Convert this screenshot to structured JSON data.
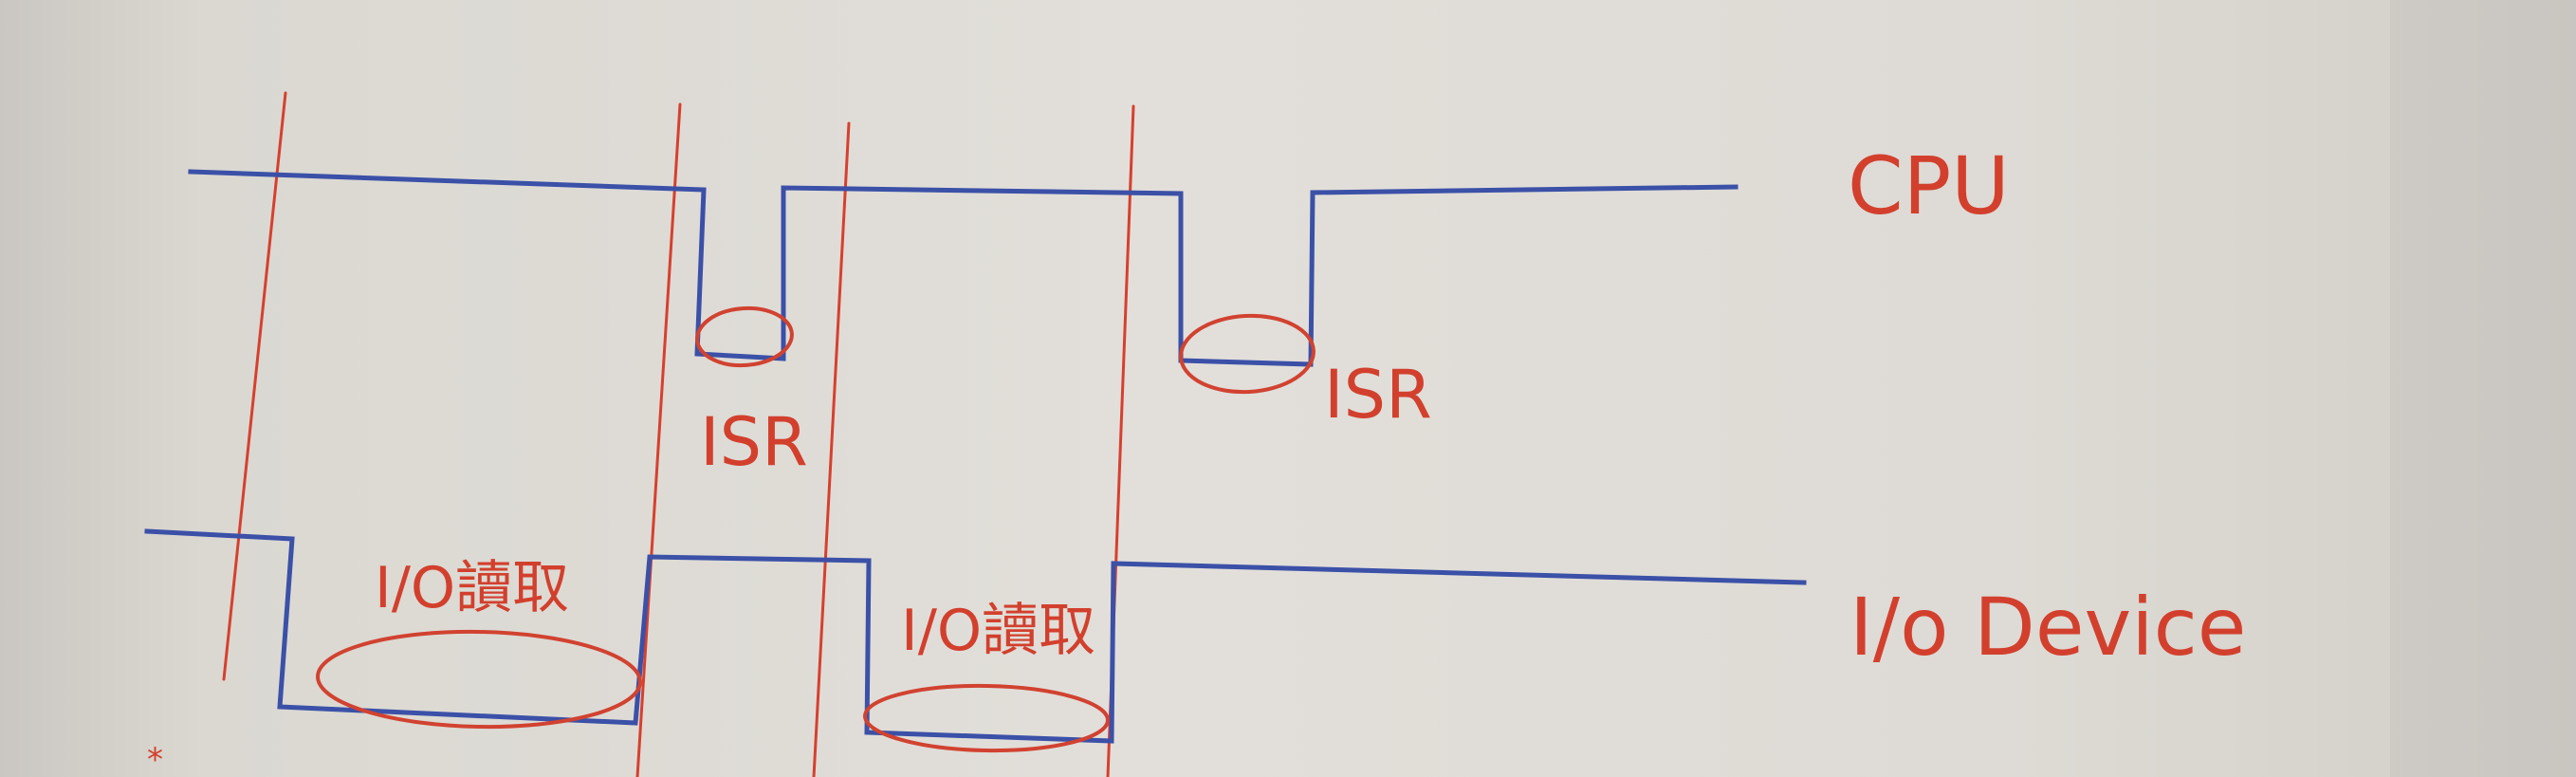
{
  "labels": {
    "cpu": "CPU",
    "isr_1": "ISR",
    "isr_2": "ISR",
    "io_read_1": "I/O讀取",
    "io_read_2": "I/O讀取",
    "io_device": "I/o Device"
  },
  "colors": {
    "ink_blue": "#3b50a7",
    "ink_red": "#d2402d",
    "paper": "#dcd9d1"
  }
}
